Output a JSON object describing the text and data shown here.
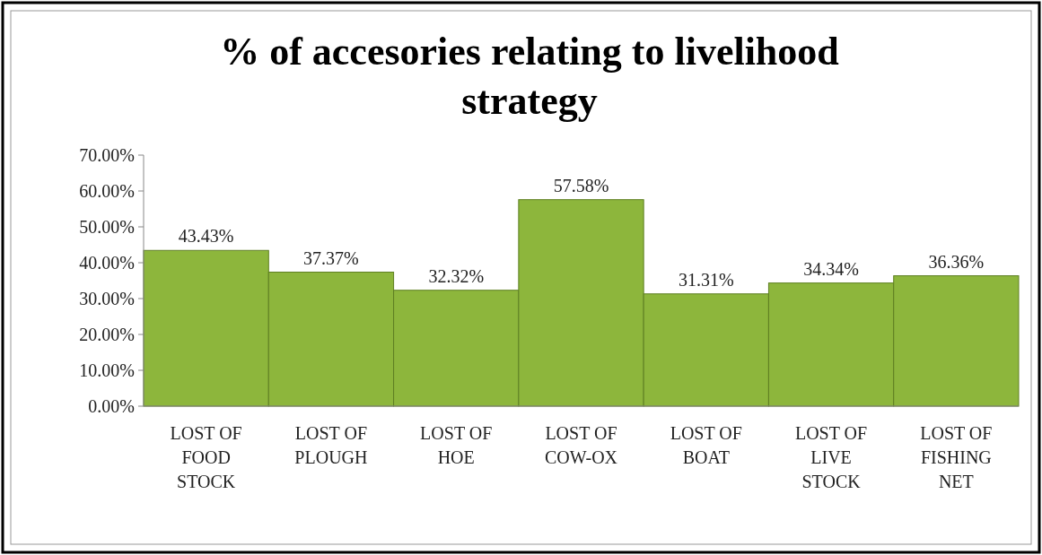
{
  "chart_data": {
    "type": "bar",
    "title": "% of accesories relating to livelihood\nstrategy",
    "categories": [
      "LOST OF\nFOOD\nSTOCK",
      "LOST OF\nPLOUGH",
      "LOST OF\nHOE",
      "LOST OF\nCOW-OX",
      "LOST OF\nBOAT",
      "LOST OF\nLIVE\nSTOCK",
      "LOST OF\nFISHING\nNET"
    ],
    "values": [
      43.43,
      37.37,
      32.32,
      57.58,
      31.31,
      34.34,
      36.36
    ],
    "value_labels": [
      "43.43%",
      "37.37%",
      "32.32%",
      "57.58%",
      "31.31%",
      "34.34%",
      "36.36%"
    ],
    "color": "#8db63c",
    "ylim": [
      0,
      70
    ],
    "yticks": [
      {
        "value": 0,
        "label": "0.00%"
      },
      {
        "value": 10,
        "label": "10.00%"
      },
      {
        "value": 20,
        "label": "20.00%"
      },
      {
        "value": 30,
        "label": "30.00%"
      },
      {
        "value": 40,
        "label": "40.00%"
      },
      {
        "value": 50,
        "label": "50.00%"
      },
      {
        "value": 60,
        "label": "60.00%"
      },
      {
        "value": 70,
        "label": "70.00%"
      }
    ],
    "grid": false
  }
}
